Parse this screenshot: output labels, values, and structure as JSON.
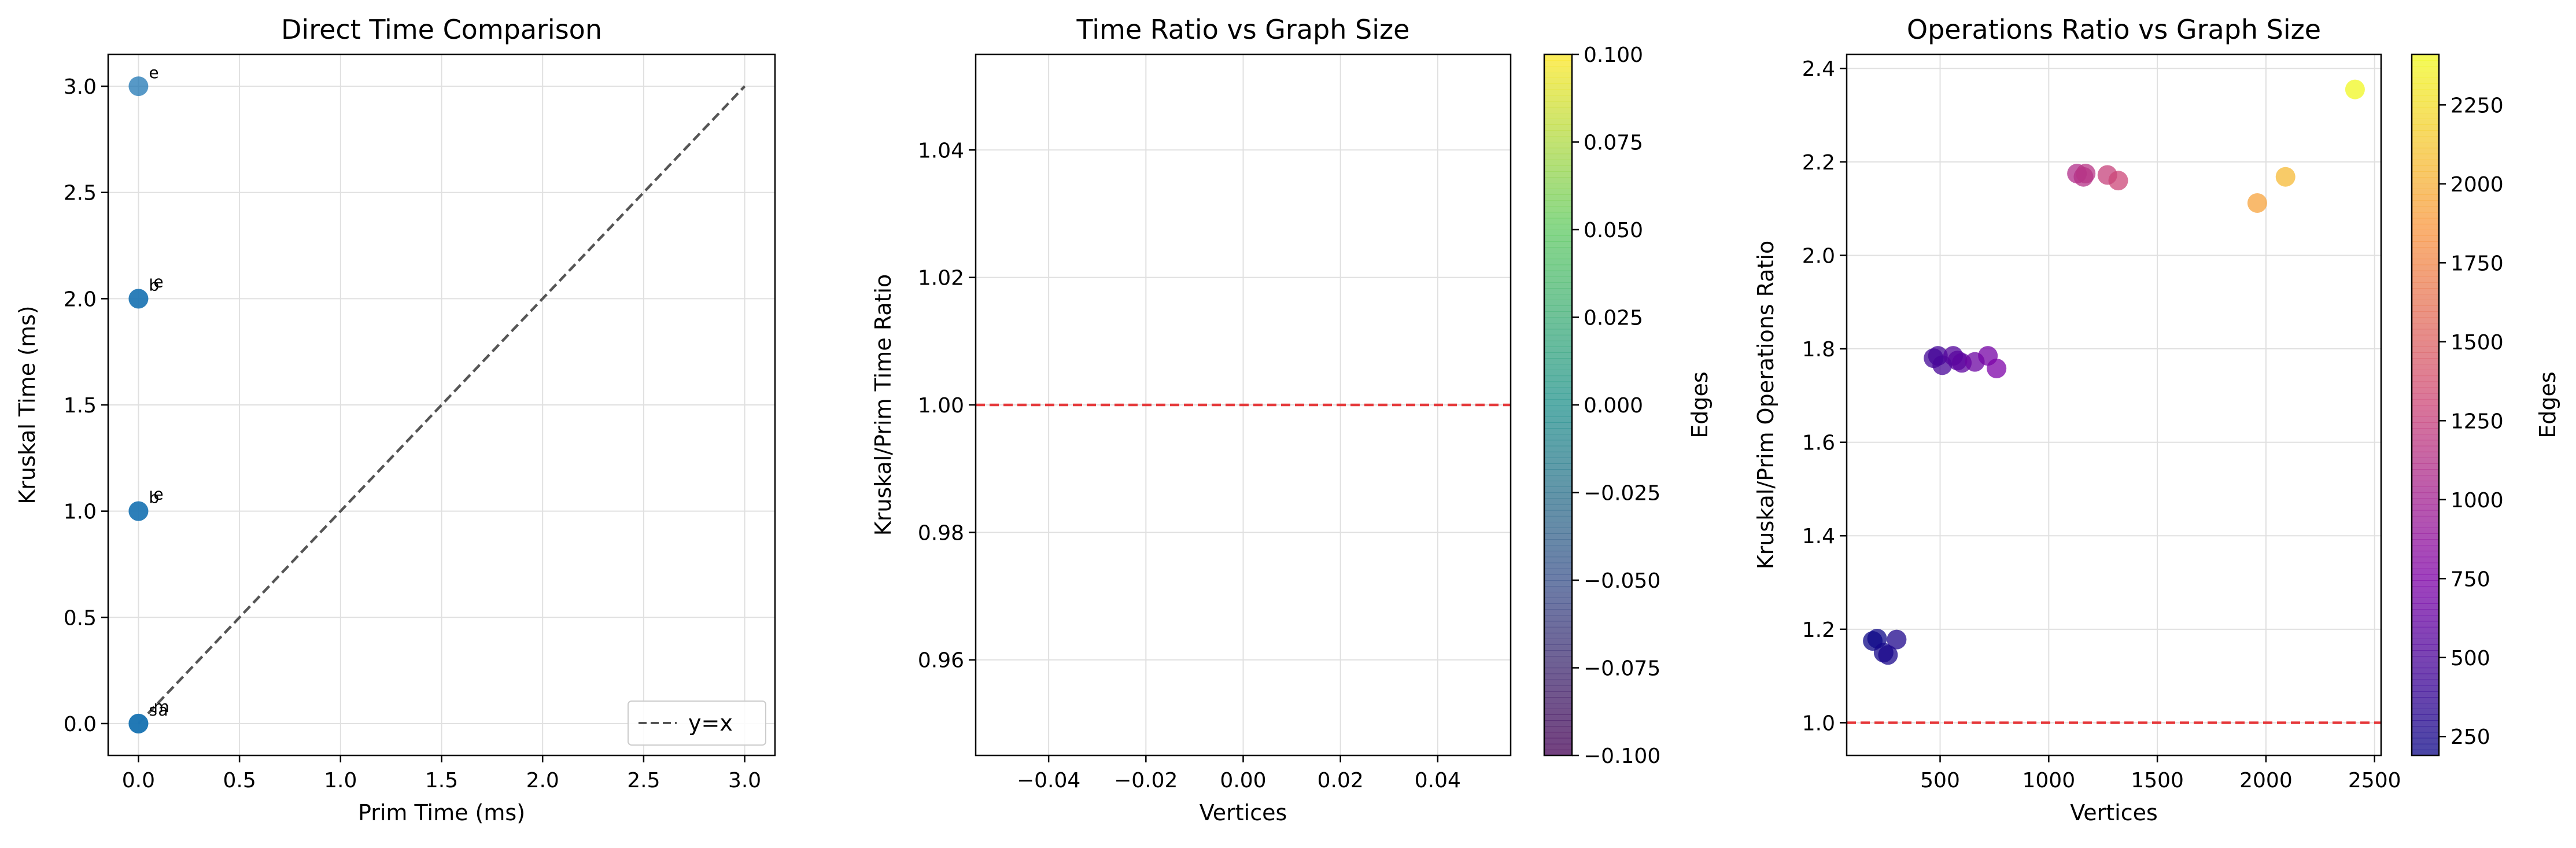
{
  "chart_data": [
    {
      "type": "scatter",
      "title": "Direct Time Comparison",
      "xlabel": "Prim Time (ms)",
      "ylabel": "Kruskal Time (ms)",
      "xlim": [
        -0.15,
        3.15
      ],
      "ylim": [
        -0.15,
        3.15
      ],
      "xticks": [
        "0.0",
        "0.5",
        "1.0",
        "1.5",
        "2.0",
        "2.5",
        "3.0"
      ],
      "yticks": [
        "0.0",
        "0.5",
        "1.0",
        "1.5",
        "2.0",
        "2.5",
        "3.0"
      ],
      "grid": true,
      "point_color": "#1f77b4",
      "points": [
        {
          "x": 0,
          "y": 3,
          "label": "e"
        },
        {
          "x": 0,
          "y": 2,
          "label": "b"
        },
        {
          "x": 0,
          "y": 2,
          "label": "e"
        },
        {
          "x": 0,
          "y": 1,
          "label": "b"
        },
        {
          "x": 0,
          "y": 1,
          "label": "e"
        },
        {
          "x": 0,
          "y": 0,
          "label": "s"
        },
        {
          "x": 0,
          "y": 0,
          "label": "m"
        },
        {
          "x": 0,
          "y": 0,
          "label": "a"
        }
      ],
      "reference_line": {
        "from": [
          0,
          0
        ],
        "to": [
          3,
          3
        ],
        "style": "dashed",
        "color": "#555555",
        "label": "y=x"
      },
      "legend": {
        "placement": "lower-right",
        "entries": [
          "y=x"
        ]
      }
    },
    {
      "type": "scatter",
      "title": "Time Ratio vs Graph Size",
      "xlabel": "Vertices",
      "ylabel": "Kruskal/Prim Time Ratio",
      "xlim": [
        -0.055,
        0.055
      ],
      "ylim": [
        0.945,
        1.055
      ],
      "xticks": [
        "−0.04",
        "−0.02",
        "0.00",
        "0.02",
        "0.04"
      ],
      "yticks": [
        "0.96",
        "0.98",
        "1.00",
        "1.02",
        "1.04"
      ],
      "grid": true,
      "points": [],
      "reference_hline": {
        "y": 1.0,
        "style": "dashed",
        "color": "#e41a1c"
      },
      "colorbar": {
        "label": "Edges",
        "colormap": "viridis",
        "range": [
          -0.1,
          0.1
        ],
        "ticks": [
          "−0.100",
          "−0.075",
          "−0.050",
          "−0.025",
          "0.000",
          "0.025",
          "0.050",
          "0.075",
          "0.100"
        ]
      }
    },
    {
      "type": "scatter",
      "title": "Operations Ratio vs Graph Size",
      "xlabel": "Vertices",
      "ylabel": "Kruskal/Prim Operations Ratio",
      "xlim": [
        70,
        2530
      ],
      "ylim": [
        0.93,
        2.43
      ],
      "xticks": [
        "500",
        "1000",
        "1500",
        "2000",
        "2500"
      ],
      "yticks": [
        "1.0",
        "1.2",
        "1.4",
        "1.6",
        "1.8",
        "2.0",
        "2.2",
        "2.4"
      ],
      "grid": true,
      "reference_hline": {
        "y": 1.0,
        "style": "dashed",
        "color": "#e41a1c"
      },
      "colorbar": {
        "label": "Edges",
        "colormap": "plasma",
        "range": [
          190,
          2410
        ],
        "ticks": [
          "250",
          "500",
          "750",
          "1000",
          "1250",
          "1500",
          "1750",
          "2000",
          "2250"
        ]
      },
      "points": [
        {
          "x": 190,
          "y": 1.175,
          "edges": 190
        },
        {
          "x": 210,
          "y": 1.18,
          "edges": 200
        },
        {
          "x": 240,
          "y": 1.15,
          "edges": 230
        },
        {
          "x": 260,
          "y": 1.145,
          "edges": 250
        },
        {
          "x": 300,
          "y": 1.178,
          "edges": 280
        },
        {
          "x": 470,
          "y": 1.78,
          "edges": 450
        },
        {
          "x": 490,
          "y": 1.785,
          "edges": 470
        },
        {
          "x": 510,
          "y": 1.765,
          "edges": 480
        },
        {
          "x": 560,
          "y": 1.785,
          "edges": 540
        },
        {
          "x": 580,
          "y": 1.775,
          "edges": 560
        },
        {
          "x": 600,
          "y": 1.77,
          "edges": 590
        },
        {
          "x": 660,
          "y": 1.772,
          "edges": 650
        },
        {
          "x": 720,
          "y": 1.785,
          "edges": 700
        },
        {
          "x": 760,
          "y": 1.758,
          "edges": 740
        },
        {
          "x": 1130,
          "y": 2.175,
          "edges": 1100
        },
        {
          "x": 1160,
          "y": 2.168,
          "edges": 1130
        },
        {
          "x": 1170,
          "y": 2.175,
          "edges": 1150
        },
        {
          "x": 1270,
          "y": 2.172,
          "edges": 1260
        },
        {
          "x": 1320,
          "y": 2.16,
          "edges": 1300
        },
        {
          "x": 1960,
          "y": 2.112,
          "edges": 1930
        },
        {
          "x": 2090,
          "y": 2.168,
          "edges": 2060
        },
        {
          "x": 2410,
          "y": 2.355,
          "edges": 2400
        }
      ]
    }
  ]
}
